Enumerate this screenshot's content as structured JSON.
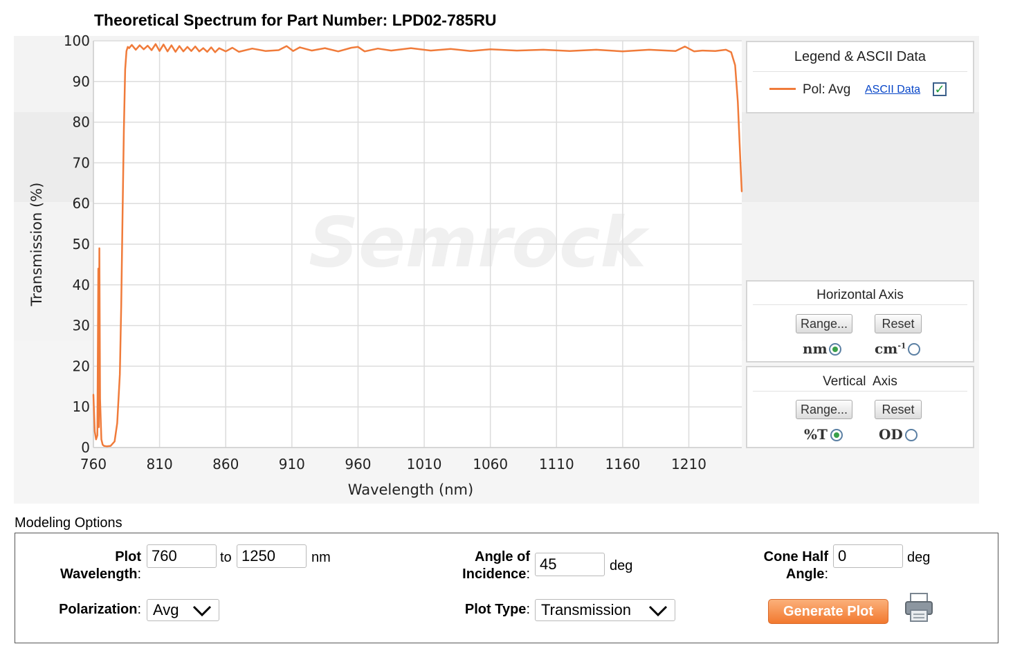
{
  "title": "Theoretical Spectrum for Part Number: LPD02-785RU",
  "chart_data": {
    "type": "line",
    "title": "Theoretical Spectrum for Part Number: LPD02-785RU",
    "xlabel": "Wavelength (nm)",
    "ylabel": "Transmission (%)",
    "xlim": [
      760,
      1250
    ],
    "ylim": [
      0,
      100
    ],
    "xticks": [
      760,
      810,
      860,
      910,
      960,
      1010,
      1060,
      1110,
      1160,
      1210
    ],
    "yticks": [
      0,
      10,
      20,
      30,
      40,
      50,
      60,
      70,
      80,
      90,
      100
    ],
    "grid": true,
    "watermark": "Semrock",
    "series": [
      {
        "name": "Pol: Avg",
        "color": "#f07b3a",
        "x": [
          760,
          761,
          762,
          763,
          763.7,
          764.1,
          764.5,
          765,
          766,
          767,
          768,
          770,
          773,
          776,
          778,
          780,
          781,
          782,
          783,
          784,
          785,
          786,
          787,
          789,
          792,
          795,
          798,
          801,
          804,
          807,
          810,
          813,
          816,
          819,
          822,
          825,
          828,
          831,
          834,
          837,
          840,
          843,
          846,
          849,
          852,
          855,
          860,
          865,
          870,
          880,
          890,
          900,
          906,
          911,
          916,
          925,
          935,
          945,
          955,
          960,
          965,
          975,
          985,
          1000,
          1015,
          1030,
          1045,
          1060,
          1080,
          1100,
          1120,
          1140,
          1160,
          1180,
          1200,
          1207,
          1214,
          1220,
          1230,
          1238,
          1242,
          1245,
          1247,
          1249,
          1250
        ],
        "values": [
          13,
          4,
          2,
          3,
          44,
          5,
          49,
          12,
          2,
          0.7,
          0.4,
          0.3,
          0.4,
          1.5,
          6,
          18,
          35,
          57,
          78,
          93,
          97.5,
          98.5,
          98.2,
          99,
          97.8,
          98.9,
          97.9,
          98.8,
          97.7,
          99.2,
          97.5,
          99.1,
          97.4,
          98.9,
          97.3,
          98.7,
          97.4,
          98.5,
          97.5,
          98.6,
          97.4,
          98.2,
          97.3,
          98.4,
          97.2,
          98.2,
          97.4,
          98.3,
          97.3,
          98.1,
          97.5,
          97.7,
          98.7,
          97.5,
          98.4,
          97.6,
          98.2,
          97.4,
          98.3,
          98.5,
          97.4,
          98.1,
          97.6,
          98.2,
          97.6,
          98.0,
          97.5,
          97.9,
          97.6,
          97.8,
          97.5,
          97.8,
          97.4,
          97.8,
          97.5,
          98.6,
          97.4,
          97.6,
          97.5,
          97.8,
          97.2,
          94,
          85,
          70,
          63
        ]
      }
    ]
  },
  "legend": {
    "title": "Legend & ASCII Data",
    "entry": "Pol: Avg",
    "ascii_link": "ASCII Data",
    "checked": true
  },
  "horizontal_axis": {
    "title": "Horizontal Axis",
    "range_label": "Range...",
    "reset_label": "Reset",
    "unit1": "nm",
    "unit2": "cm",
    "unit2_sup": "-1",
    "selected": "nm"
  },
  "vertical_axis": {
    "title": "Vertical  Axis",
    "range_label": "Range...",
    "reset_label": "Reset",
    "unit1": "%T",
    "unit2": "OD",
    "selected": "%T"
  },
  "modeling": {
    "section_title": "Modeling Options",
    "plot_wavelength_label_1": "Plot",
    "plot_wavelength_label_2": "Wavelength",
    "colon": ":",
    "wl_from": "760",
    "to_label": "to",
    "wl_to": "1250",
    "wl_unit": "nm",
    "aoi_label_1": "Angle of",
    "aoi_label_2": "Incidence",
    "aoi_value": "45",
    "aoi_unit": "deg",
    "cone_label_1": "Cone Half",
    "cone_label_2": "Angle",
    "cone_value": "0",
    "cone_unit": "deg",
    "polarization_label": "Polarization",
    "polarization_value": "Avg",
    "plot_type_label": "Plot Type",
    "plot_type_value": "Transmission",
    "generate_label": "Generate Plot"
  },
  "icons": {
    "print": "printer-icon",
    "dropdown": "chevron-down-icon",
    "check": "checkmark-icon"
  }
}
